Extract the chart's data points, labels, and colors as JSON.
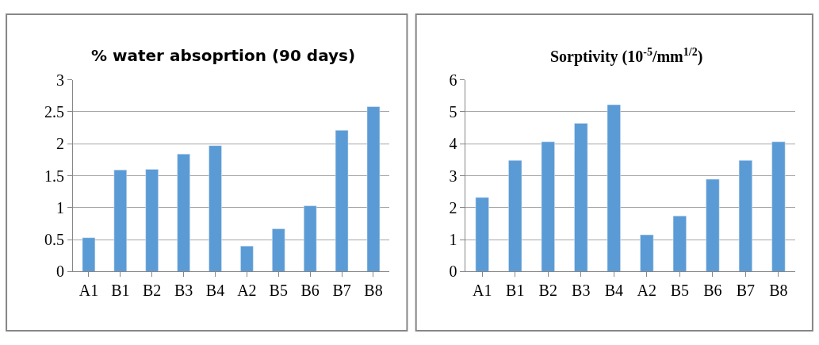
{
  "chart_data": [
    {
      "type": "bar",
      "title": "% water absoprtion (90 days)",
      "categories": [
        "A1",
        "B1",
        "B2",
        "B3",
        "B4",
        "A2",
        "B5",
        "B6",
        "B7",
        "B8"
      ],
      "values": [
        0.53,
        1.59,
        1.6,
        1.84,
        1.97,
        0.4,
        0.67,
        1.03,
        2.21,
        2.58
      ],
      "color": "#5b9bd5",
      "ylim": [
        0,
        3
      ],
      "yticks": [
        0,
        0.5,
        1,
        1.5,
        2,
        2.5,
        3
      ],
      "grid": "y",
      "legend": false
    },
    {
      "type": "bar",
      "title": "Sorptivity (10$^{-5}$/mm$^{1/2}$)",
      "categories": [
        "A1",
        "B1",
        "B2",
        "B3",
        "B4",
        "A2",
        "B5",
        "B6",
        "B7",
        "B8"
      ],
      "values": [
        2.32,
        3.48,
        4.06,
        4.64,
        5.22,
        1.15,
        1.74,
        2.89,
        3.48,
        4.06
      ],
      "color": "#5b9bd5",
      "ylim": [
        0,
        6
      ],
      "yticks": [
        0,
        1,
        2,
        3,
        4,
        5,
        6
      ],
      "grid": "y",
      "legend": false
    }
  ]
}
